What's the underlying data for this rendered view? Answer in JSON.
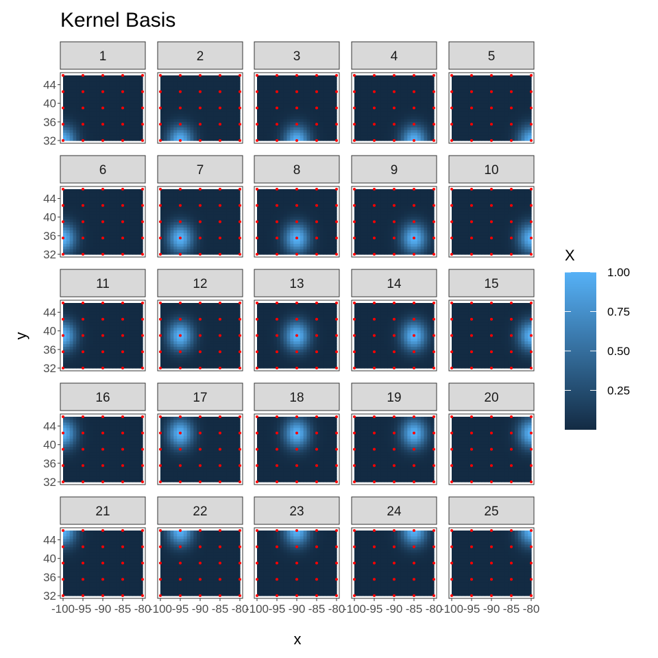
{
  "chart_data": {
    "type": "heatmap",
    "title": "Kernel Basis",
    "xlabel": "x",
    "ylabel": "y",
    "x_ticks": [
      -100,
      -95,
      -90,
      -85,
      -80
    ],
    "x_tick_labels": [
      "-100",
      "-95",
      "-90",
      "-85",
      "-80"
    ],
    "y_ticks": [
      32,
      36,
      40,
      44
    ],
    "y_tick_labels": [
      "32",
      "36",
      "40",
      "44"
    ],
    "xlim": [
      -100,
      -80
    ],
    "ylim": [
      32,
      46
    ],
    "panels": [
      "1",
      "2",
      "3",
      "4",
      "5",
      "6",
      "7",
      "8",
      "9",
      "10",
      "11",
      "12",
      "13",
      "14",
      "15",
      "16",
      "17",
      "18",
      "19",
      "20",
      "21",
      "22",
      "23",
      "24",
      "25"
    ],
    "centers_x": [
      -100,
      -95,
      -90,
      -85,
      -80
    ],
    "centers_y": [
      32,
      35.5,
      39,
      42.5,
      46
    ],
    "kernel_sd": 2.2,
    "knot_points": {
      "x": [
        -100,
        -95,
        -90,
        -85,
        -80
      ],
      "y": [
        32,
        35.5,
        39,
        42.5,
        46
      ],
      "color": "#ff0000"
    },
    "legend": {
      "title": "X",
      "breaks": [
        0.25,
        0.5,
        0.75,
        1.0
      ],
      "labels": [
        "0.25",
        "0.50",
        "0.75",
        "1.00"
      ],
      "range": [
        0,
        1
      ],
      "placement": "right"
    },
    "colors": {
      "low": "#132B43",
      "high": "#56B1F7",
      "strip_fill": "#d9d9d9",
      "strip_border": "#333333"
    },
    "grid": false
  }
}
